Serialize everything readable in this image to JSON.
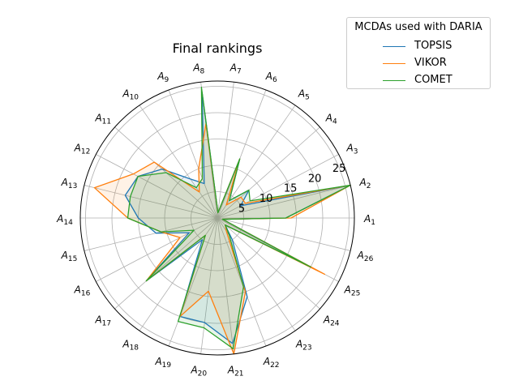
{
  "chart_data": {
    "type": "radar",
    "title": "Final rankings",
    "categories": [
      "A1",
      "A2",
      "A3",
      "A4",
      "A5",
      "A6",
      "A7",
      "A8",
      "A9",
      "A10",
      "A11",
      "A12",
      "A13",
      "A14",
      "A15",
      "A16",
      "A17",
      "A18",
      "A19",
      "A20",
      "A21",
      "A22",
      "A23",
      "A24",
      "A25",
      "A26"
    ],
    "category_labels": [
      {
        "base": "A",
        "sub": "1"
      },
      {
        "base": "A",
        "sub": "2"
      },
      {
        "base": "A",
        "sub": "3"
      },
      {
        "base": "A",
        "sub": "4"
      },
      {
        "base": "A",
        "sub": "5"
      },
      {
        "base": "A",
        "sub": "6"
      },
      {
        "base": "A",
        "sub": "7"
      },
      {
        "base": "A",
        "sub": "8"
      },
      {
        "base": "A",
        "sub": "9"
      },
      {
        "base": "A",
        "sub": "10"
      },
      {
        "base": "A",
        "sub": "11"
      },
      {
        "base": "A",
        "sub": "12"
      },
      {
        "base": "A",
        "sub": "13"
      },
      {
        "base": "A",
        "sub": "14"
      },
      {
        "base": "A",
        "sub": "15"
      },
      {
        "base": "A",
        "sub": "16"
      },
      {
        "base": "A",
        "sub": "17"
      },
      {
        "base": "A",
        "sub": "18"
      },
      {
        "base": "A",
        "sub": "19"
      },
      {
        "base": "A",
        "sub": "20"
      },
      {
        "base": "A",
        "sub": "21"
      },
      {
        "base": "A",
        "sub": "22"
      },
      {
        "base": "A",
        "sub": "23"
      },
      {
        "base": "A",
        "sub": "24"
      },
      {
        "base": "A",
        "sub": "25"
      },
      {
        "base": "A",
        "sub": "26"
      }
    ],
    "radial_ticks": [
      5,
      10,
      15,
      20,
      25
    ],
    "r_range": [
      0,
      26
    ],
    "grid": true,
    "legend": {
      "title": "MCDAs used with DARIA",
      "placement": "top-right"
    },
    "series": [
      {
        "name": "TOPSIS",
        "color": "#1f77b4",
        "values": [
          13,
          26,
          5,
          8,
          4,
          12,
          1,
          24,
          7,
          9,
          14,
          17,
          18,
          15,
          12,
          6,
          18,
          5,
          20,
          20,
          24,
          16,
          5,
          2,
          20,
          1
        ]
      },
      {
        "name": "VIKOR",
        "color": "#ff7f0e",
        "values": [
          14,
          26,
          6,
          6,
          3,
          12,
          1,
          18,
          10,
          6,
          16,
          18,
          24,
          17,
          11,
          8,
          18,
          4,
          20,
          14,
          26,
          15,
          3,
          2,
          23,
          1
        ]
      },
      {
        "name": "COMET",
        "color": "#2ca02c",
        "values": [
          13,
          26,
          7,
          8,
          4,
          12,
          1,
          25,
          8,
          7,
          13,
          17,
          17,
          17,
          11,
          5,
          18,
          4,
          21,
          21,
          25,
          14,
          4,
          2,
          20,
          1
        ]
      }
    ]
  }
}
